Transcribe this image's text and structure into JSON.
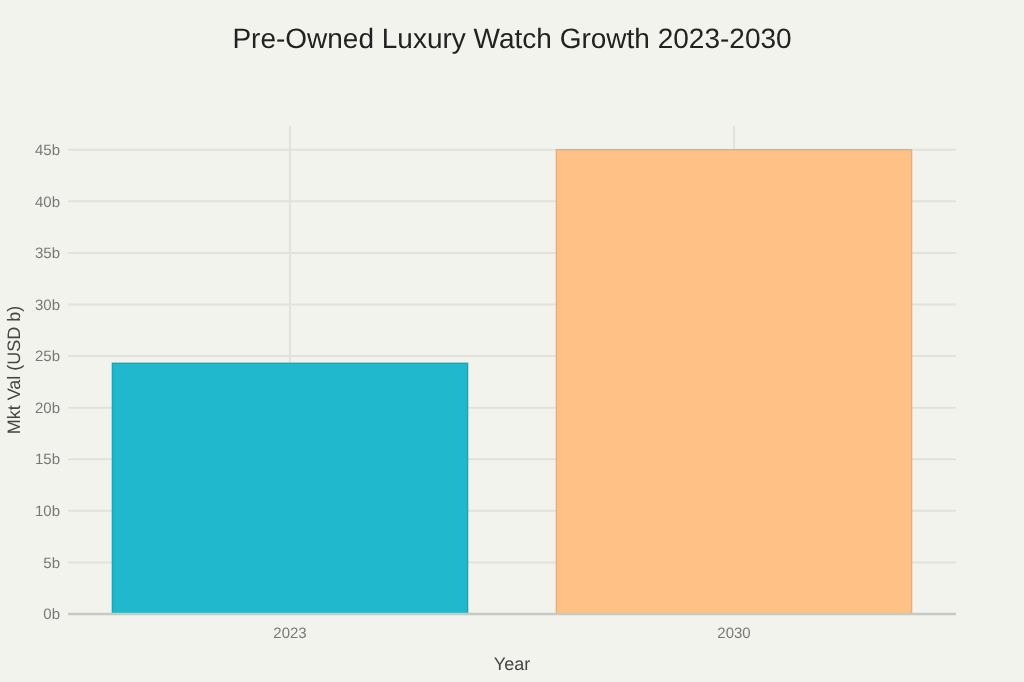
{
  "chart_data": {
    "type": "bar",
    "title": "Pre-Owned Luxury Watch Growth 2023-2030",
    "xlabel": "Year",
    "ylabel": "Mkt Val (USD b)",
    "categories": [
      "2023",
      "2030"
    ],
    "values": [
      24.3,
      45
    ],
    "colors": [
      "#1fb8cd",
      "#ffc185"
    ],
    "ylim": [
      0,
      47.3
    ],
    "yticks": [
      {
        "value": 0,
        "label": "0b"
      },
      {
        "value": 5,
        "label": "5b"
      },
      {
        "value": 10,
        "label": "10b"
      },
      {
        "value": 15,
        "label": "15b"
      },
      {
        "value": 20,
        "label": "20b"
      },
      {
        "value": 25,
        "label": "25b"
      },
      {
        "value": 30,
        "label": "30b"
      },
      {
        "value": 35,
        "label": "35b"
      },
      {
        "value": 40,
        "label": "40b"
      },
      {
        "value": 45,
        "label": "45b"
      }
    ],
    "grid": true
  }
}
